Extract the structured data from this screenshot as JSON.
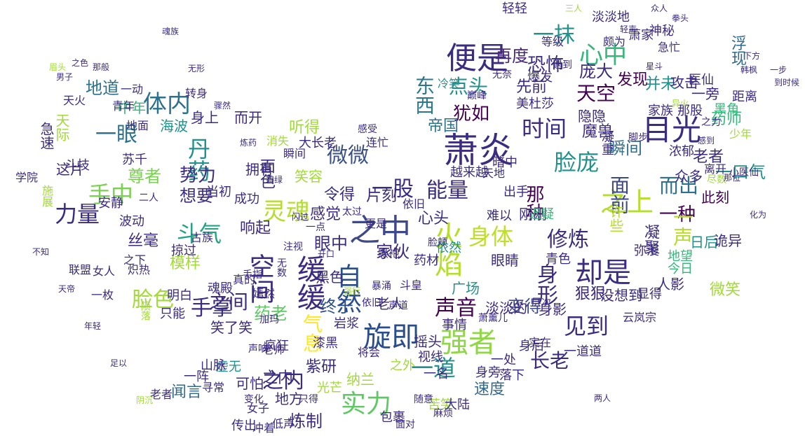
{
  "words": [
    {
      "t": "萧炎",
      "c": "#3b2b83"
    },
    {
      "t": "目光",
      "c": "#3b2b83"
    },
    {
      "t": "便是",
      "c": "#3b2b83"
    },
    {
      "t": "旋即",
      "c": "#2a4e8c"
    },
    {
      "t": "之中",
      "c": "#3e4989"
    },
    {
      "t": "缓缓",
      "c": "#3b2b83"
    },
    {
      "t": "强者",
      "c": "#8fd744"
    },
    {
      "t": "实力",
      "c": "#5ec962"
    },
    {
      "t": "却是",
      "c": "#3b2b83"
    },
    {
      "t": "自然",
      "c": "#2a4e8c"
    },
    {
      "t": "微微",
      "c": "#3b528b"
    },
    {
      "t": "空间",
      "c": "#3b2b83"
    },
    {
      "t": "火焰",
      "c": "#b5de2b"
    },
    {
      "t": "之上",
      "c": "#b5de2b"
    },
    {
      "t": "灵魂",
      "c": "#b5de2b"
    },
    {
      "t": "身体",
      "c": "#bddf26"
    },
    {
      "t": "脸庞",
      "c": "#21918c"
    },
    {
      "t": "能量",
      "c": "#3b2b83"
    },
    {
      "t": "心中",
      "c": "#35b779"
    },
    {
      "t": "斗气",
      "c": "#21a585"
    },
    {
      "t": "体内",
      "c": "#2c728e"
    },
    {
      "t": "力量",
      "c": "#3b2b83"
    },
    {
      "t": "丹药",
      "c": "#21918c"
    },
    {
      "t": "见到",
      "c": "#3b2b83"
    },
    {
      "t": "手中",
      "c": "#7ad151"
    },
    {
      "t": "时间",
      "c": "#3b2b83"
    },
    {
      "t": "一眼",
      "c": "#2c728e"
    },
    {
      "t": "声音",
      "c": "#440154"
    },
    {
      "t": "一股",
      "c": "#3b2b83"
    },
    {
      "t": "一抹",
      "c": "#21918c"
    },
    {
      "t": "天空",
      "c": "#440154"
    },
    {
      "t": "手掌",
      "c": "#3b2b83"
    },
    {
      "t": "修炼",
      "c": "#3b2b83"
    },
    {
      "t": "脸色",
      "c": "#a2da37"
    },
    {
      "t": "面前",
      "c": "#3e4989"
    },
    {
      "t": "而出",
      "c": "#2c728e"
    },
    {
      "t": "一道",
      "c": "#21918c"
    },
    {
      "t": "之内",
      "c": "#3b2b83"
    },
    {
      "t": "身形",
      "c": "#3b2b83"
    },
    {
      "t": "一种",
      "c": "#440154"
    },
    {
      "t": "一声",
      "c": "#b5de2b"
    },
    {
      "t": "点头",
      "c": "#21918c"
    },
    {
      "t": "东西",
      "c": "#2a788e"
    },
    {
      "t": "犹如",
      "c": "#440154"
    },
    {
      "t": "恐怖",
      "c": "#3b2b83"
    },
    {
      "t": "再度",
      "c": "#482878"
    },
    {
      "t": "浮现",
      "c": "#31688e"
    },
    {
      "t": "庞大",
      "c": "#3b2b83"
    },
    {
      "t": "并未",
      "c": "#21918c"
    },
    {
      "t": "发现",
      "c": "#440154"
    },
    {
      "t": "地道",
      "c": "#2c728e"
    },
    {
      "t": "药师",
      "c": "#35b779"
    },
    {
      "t": "帝国",
      "c": "#2c728e"
    },
    {
      "t": "终于",
      "c": "#2a4e8c"
    },
    {
      "t": "气息",
      "c": "#fde725"
    },
    {
      "t": "长老",
      "c": "#3b2b83"
    },
    {
      "t": "变得",
      "c": "#3e4989"
    },
    {
      "t": "之间",
      "c": "#3b2b83"
    },
    {
      "t": "瞬间",
      "c": "#2c728e"
    },
    {
      "t": "势力",
      "c": "#3b2b83"
    },
    {
      "t": "想要",
      "c": "#3b2b83"
    },
    {
      "t": "尊者",
      "c": "#7ad151"
    },
    {
      "t": "一口气",
      "c": "#21918c"
    },
    {
      "t": "此刻",
      "c": "#440154"
    },
    {
      "t": "速度",
      "c": "#31688e"
    },
    {
      "t": "眼中",
      "c": "#3b2b83"
    },
    {
      "t": "家伙",
      "c": "#3b2b83"
    },
    {
      "t": "那种",
      "c": "#440154"
    },
    {
      "t": "心头",
      "c": "#3b2b83"
    },
    {
      "t": "令得",
      "c": "#3b2b83"
    },
    {
      "t": "片刻",
      "c": "#3b2b83"
    },
    {
      "t": "感觉",
      "c": "#3b2b83"
    },
    {
      "t": "响起",
      "c": "#3b2b83"
    },
    {
      "t": "丝毫",
      "c": "#3b2b83"
    },
    {
      "t": "模样",
      "c": "#a2da37"
    },
    {
      "t": "药老",
      "c": "#5ec962"
    },
    {
      "t": "闻言",
      "c": "#31688e"
    },
    {
      "t": "炼制",
      "c": "#3b2b83"
    },
    {
      "t": "可怕",
      "c": "#3b2b83"
    },
    {
      "t": "紫研",
      "c": "#3b2b83"
    },
    {
      "t": "魔兽",
      "c": "#3b2b83"
    },
    {
      "t": "先前",
      "c": "#3b2b83"
    },
    {
      "t": "隐隐",
      "c": "#3b2b83"
    },
    {
      "t": "面色",
      "c": "#3b2b83"
    },
    {
      "t": "狠狠",
      "c": "#3b2b83"
    },
    {
      "t": "日后",
      "c": "#21918c"
    },
    {
      "t": "凝聚",
      "c": "#3b2b83"
    },
    {
      "t": "诡异",
      "c": "#3b2b83"
    },
    {
      "t": "摇头",
      "c": "#3b2b83"
    },
    {
      "t": "中年",
      "c": "#35b779"
    },
    {
      "t": "听得",
      "c": "#a2da37"
    },
    {
      "t": "一旁",
      "c": "#3b2b83"
    },
    {
      "t": "海波",
      "c": "#21918c"
    },
    {
      "t": "身上",
      "c": "#3b2b83"
    },
    {
      "t": "攻击",
      "c": "#3b2b83"
    },
    {
      "t": "老者",
      "c": "#3b2b83"
    },
    {
      "t": "而开",
      "c": "#3b2b83"
    },
    {
      "t": "拥有",
      "c": "#3b2b83"
    },
    {
      "t": "这片",
      "c": "#3b2b83"
    },
    {
      "t": "青年",
      "c": "#3b2b83"
    },
    {
      "t": "地面",
      "c": "#3b2b83"
    },
    {
      "t": "爆发",
      "c": "#3b2b83"
    },
    {
      "t": "颇为",
      "c": "#3b2b83"
    },
    {
      "t": "美杜莎",
      "c": "#3b2b83"
    },
    {
      "t": "越来越",
      "c": "#3b2b83"
    },
    {
      "t": "大长老",
      "c": "#3b2b83"
    },
    {
      "t": "笑容",
      "c": "#a2da37"
    },
    {
      "t": "刚刚",
      "c": "#3b2b83"
    },
    {
      "t": "许些",
      "c": "#b5de2b"
    },
    {
      "t": "淡淡的",
      "c": "#3b2b83"
    },
    {
      "t": "眼睛",
      "c": "#3b2b83"
    },
    {
      "t": "人影",
      "c": "#3b2b83"
    },
    {
      "t": "广场",
      "c": "#21918c"
    },
    {
      "t": "黑色",
      "c": "#3b2b83"
    },
    {
      "t": "老人",
      "c": "#3b2b83"
    },
    {
      "t": "身影",
      "c": "#3b2b83"
    },
    {
      "t": "地方",
      "c": "#3b2b83"
    },
    {
      "t": "之内",
      "c": "#3b2b83"
    },
    {
      "t": "没想到",
      "c": "#3b2b83"
    },
    {
      "t": "微笑",
      "c": "#a2da37"
    },
    {
      "t": "众多",
      "c": "#3b2b83"
    },
    {
      "t": "离开",
      "c": "#3b2b83"
    },
    {
      "t": "家族",
      "c": "#3b2b83"
    },
    {
      "t": "那股",
      "c": "#3b2b83"
    },
    {
      "t": "黑角",
      "c": "#35b779"
    },
    {
      "t": "浓郁",
      "c": "#3b2b83"
    },
    {
      "t": "少年",
      "c": "#a2da37"
    },
    {
      "t": "天际",
      "c": "#a2da37"
    },
    {
      "t": "斗技",
      "c": "#3b2b83"
    },
    {
      "t": "苏千",
      "c": "#3b2b83"
    },
    {
      "t": "当初",
      "c": "#3b2b83"
    },
    {
      "t": "成功",
      "c": "#3b2b83"
    },
    {
      "t": "波动",
      "c": "#3b2b83"
    },
    {
      "t": "掠过",
      "c": "#3b2b83"
    },
    {
      "t": "明白",
      "c": "#3b2b83"
    },
    {
      "t": "只能",
      "c": "#3b2b83"
    },
    {
      "t": "笑了笑",
      "c": "#3b2b83"
    },
    {
      "t": "虚无",
      "c": "#21918c"
    },
    {
      "t": "一阵",
      "c": "#3b2b83"
    },
    {
      "t": "山脉",
      "c": "#3b2b83"
    },
    {
      "t": "传出",
      "c": "#3b2b83"
    },
    {
      "t": "包裹",
      "c": "#3b2b83"
    },
    {
      "t": "苦笑",
      "c": "#a2da37"
    },
    {
      "t": "落下",
      "c": "#3b2b83"
    },
    {
      "t": "身后",
      "c": "#3b2b83"
    },
    {
      "t": "实在",
      "c": "#3b2b83"
    },
    {
      "t": "一道道",
      "c": "#3b2b83"
    },
    {
      "t": "视线",
      "c": "#3b2b83"
    },
    {
      "t": "一名",
      "c": "#3b2b83"
    },
    {
      "t": "纳兰",
      "c": "#a2da37"
    },
    {
      "t": "光芒",
      "c": "#a2da37"
    },
    {
      "t": "事情",
      "c": "#3b2b83"
    },
    {
      "t": "岩浆",
      "c": "#3b2b83"
    },
    {
      "t": "漆黑",
      "c": "#3b2b83"
    },
    {
      "t": "疯狂",
      "c": "#3b2b83"
    },
    {
      "t": "身旁",
      "c": "#3b2b83"
    },
    {
      "t": "大陆",
      "c": "#3b2b83"
    },
    {
      "t": "一处",
      "c": "#3b2b83"
    },
    {
      "t": "之外",
      "c": "#a2da37"
    },
    {
      "t": "药材",
      "c": "#3b2b83"
    },
    {
      "t": "依旧",
      "c": "#3b2b83"
    },
    {
      "t": "黑袍",
      "c": "#3b2b83"
    },
    {
      "t": "依然",
      "c": "#21918c"
    },
    {
      "t": "青色",
      "c": "#3b2b83"
    },
    {
      "t": "地望",
      "c": "#35b779"
    },
    {
      "t": "今日",
      "c": "#35b779"
    },
    {
      "t": "显得",
      "c": "#3b2b83"
    },
    {
      "t": "弥漫",
      "c": "#3b2b83"
    },
    {
      "t": "出手",
      "c": "#3b2b83"
    },
    {
      "t": "难以",
      "c": "#3b2b83"
    },
    {
      "t": "迟疑",
      "c": "#35b779"
    },
    {
      "t": "冷笑",
      "c": "#21918c"
    },
    {
      "t": "轻轻",
      "c": "#3b2b83"
    },
    {
      "t": "淡淡地",
      "c": "#3b2b83"
    },
    {
      "t": "萧家",
      "c": "#3b2b83"
    },
    {
      "t": "神秘",
      "c": "#3b2b83"
    },
    {
      "t": "急忙",
      "c": "#3b2b83"
    },
    {
      "t": "医仙",
      "c": "#3b2b83"
    },
    {
      "t": "距离",
      "c": "#3b2b83"
    },
    {
      "t": "转身",
      "c": "#3b2b83"
    },
    {
      "t": "一动",
      "c": "#3b2b83"
    },
    {
      "t": "天火",
      "c": "#3b2b83"
    },
    {
      "t": "急速",
      "c": "#3b2b83"
    },
    {
      "t": "学院",
      "c": "#3b2b83"
    },
    {
      "t": "施展",
      "c": "#a2da37"
    },
    {
      "t": "安静",
      "c": "#3b2b83"
    },
    {
      "t": "二人",
      "c": "#3b2b83"
    },
    {
      "t": "古族",
      "c": "#3b2b83"
    },
    {
      "t": "之下",
      "c": "#3b2b83"
    },
    {
      "t": "炽热",
      "c": "#3b2b83"
    },
    {
      "t": "女人",
      "c": "#3b2b83"
    },
    {
      "t": "联盟",
      "c": "#3b2b83"
    },
    {
      "t": "一枚",
      "c": "#3b2b83"
    },
    {
      "t": "陨落",
      "c": "#a2da37"
    },
    {
      "t": "魂殿",
      "c": "#3b2b83"
    },
    {
      "t": "嫣然",
      "c": "#3b2b83"
    },
    {
      "t": "真的",
      "c": "#3b2b83"
    },
    {
      "t": "手指",
      "c": "#3b2b83"
    },
    {
      "t": "无数",
      "c": "#3b2b83"
    },
    {
      "t": "注视",
      "c": "#3b2b83"
    },
    {
      "t": "太过",
      "c": "#3b2b83"
    },
    {
      "t": "一点",
      "c": "#3b2b83"
    },
    {
      "t": "更是",
      "c": "#3b2b83"
    },
    {
      "t": "斗皇",
      "c": "#3b2b83"
    },
    {
      "t": "依旧",
      "c": "#3b2b83"
    },
    {
      "t": "声道",
      "c": "#3b2b83"
    },
    {
      "t": "寻常",
      "c": "#3b2b83"
    },
    {
      "t": "老者",
      "c": "#3b2b83"
    },
    {
      "t": "女子",
      "c": "#3b2b83"
    },
    {
      "t": "低声",
      "c": "#3b2b83"
    },
    {
      "t": "冲着",
      "c": "#3b2b83"
    },
    {
      "t": "老师",
      "c": "#3b2b83"
    },
    {
      "t": "将会",
      "c": "#3b2b83"
    },
    {
      "t": "只得",
      "c": "#3b2b83"
    },
    {
      "t": "萧薰儿",
      "c": "#3b2b83"
    },
    {
      "t": "天地",
      "c": "#3b2b83"
    },
    {
      "t": "暗中",
      "c": "#3b2b83"
    },
    {
      "t": "连忙",
      "c": "#3b2b83"
    },
    {
      "t": "感受",
      "c": "#3b2b83"
    },
    {
      "t": "消失",
      "c": "#a2da37"
    },
    {
      "t": "瞬间",
      "c": "#3b2b83"
    },
    {
      "t": "凝重",
      "c": "#3b2b83"
    },
    {
      "t": "脚步",
      "c": "#3b2b83"
    },
    {
      "t": "尽数",
      "c": "#a2da37"
    },
    {
      "t": "之力",
      "c": "#3b2b83"
    },
    {
      "t": "小医仙",
      "c": "#3b2b83"
    },
    {
      "t": "云岚宗",
      "c": "#3b2b83"
    },
    {
      "t": "暴涌",
      "c": "#3b2b83"
    },
    {
      "t": "加玛",
      "c": "#3b2b83"
    },
    {
      "t": "声响",
      "c": "#3b2b83"
    },
    {
      "t": "变化",
      "c": "#3b2b83"
    },
    {
      "t": "随意",
      "c": "#3b2b83"
    },
    {
      "t": "麻烦",
      "c": "#3b2b83"
    },
    {
      "t": "面对",
      "c": "#3b2b83"
    },
    {
      "t": "等级",
      "c": "#3b2b83"
    },
    {
      "t": "遇到",
      "c": "#3b2b83"
    },
    {
      "t": "无奈",
      "c": "#3b2b83"
    },
    {
      "t": "层次",
      "c": "#3b2b83"
    },
    {
      "t": "脸颊",
      "c": "#3b2b83"
    },
    {
      "t": "巅峰",
      "c": "#3b2b83"
    },
    {
      "t": "眉头",
      "c": "#a2da37"
    },
    {
      "t": "男子",
      "c": "#3b2b83"
    },
    {
      "t": "之色",
      "c": "#3b2b83"
    },
    {
      "t": "那般",
      "c": "#3b2b83"
    },
    {
      "t": "下方",
      "c": "#3b2b83"
    },
    {
      "t": "一步",
      "c": "#3b2b83"
    },
    {
      "t": "到时候",
      "c": "#3b2b83"
    },
    {
      "t": "韩枫",
      "c": "#3b2b83"
    },
    {
      "t": "众人",
      "c": "#3b2b83"
    },
    {
      "t": "拳头",
      "c": "#3b2b83"
    },
    {
      "t": "三人",
      "c": "#a2da37"
    },
    {
      "t": "两人",
      "c": "#3b2b83"
    },
    {
      "t": "轻声",
      "c": "#3b2b83"
    },
    {
      "t": "星斗",
      "c": "#3b2b83"
    },
    {
      "t": "异火",
      "c": "#a2da37"
    },
    {
      "t": "感到",
      "c": "#3b2b83"
    },
    {
      "t": "那位",
      "c": "#3b2b83"
    },
    {
      "t": "化为",
      "c": "#3b2b83"
    },
    {
      "t": "不知",
      "c": "#3b2b83"
    },
    {
      "t": "天帝",
      "c": "#3b2b83"
    },
    {
      "t": "年轻",
      "c": "#3b2b83"
    },
    {
      "t": "足以",
      "c": "#3b2b83"
    },
    {
      "t": "阴沉",
      "c": "#a2da37"
    },
    {
      "t": "魂族",
      "c": "#3b2b83"
    },
    {
      "t": "无形",
      "c": "#3b2b83"
    },
    {
      "t": "骤然",
      "c": "#3b2b83"
    },
    {
      "t": "炼药",
      "c": "#3b2b83"
    },
    {
      "t": "碧绿",
      "c": "#3b2b83"
    },
    {
      "t": "闪过",
      "c": "#3b2b83"
    },
    {
      "t": "开口",
      "c": "#3b2b83"
    },
    {
      "t": "强行",
      "c": "#a2da37"
    }
  ]
}
